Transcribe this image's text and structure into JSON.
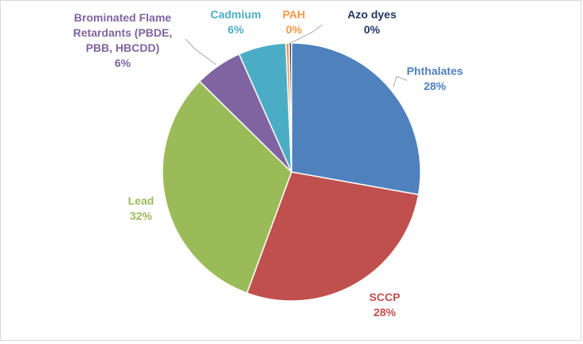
{
  "chart_data": {
    "type": "pie",
    "title": "",
    "legend": "none",
    "slices": [
      {
        "label": "Phthalates",
        "value": 28,
        "display": "28%",
        "color": "#4f81bd",
        "label_color": "#4f81bd"
      },
      {
        "label": "SCCP",
        "value": 28,
        "display": "28%",
        "color": "#c0504d",
        "label_color": "#c0504d"
      },
      {
        "label": "Lead",
        "value": 32,
        "display": "32%",
        "color": "#9bbb59",
        "label_color": "#9bbb59"
      },
      {
        "label": "Brominated Flame Retardants (PBDE, PBB, HBCDD)",
        "value": 6,
        "display": "6%",
        "color": "#8064a2",
        "label_color": "#8064a2"
      },
      {
        "label": "Cadmium",
        "value": 6,
        "display": "6%",
        "color": "#4bacc6",
        "label_color": "#4bacc6"
      },
      {
        "label": "PAH",
        "value": 0.4,
        "display": "0%",
        "color": "#f79646",
        "label_color": "#f79646"
      },
      {
        "label": "Azo dyes",
        "value": 0.3,
        "display": "0%",
        "color": "#1f3864",
        "label_color": "#1f3864"
      }
    ]
  }
}
